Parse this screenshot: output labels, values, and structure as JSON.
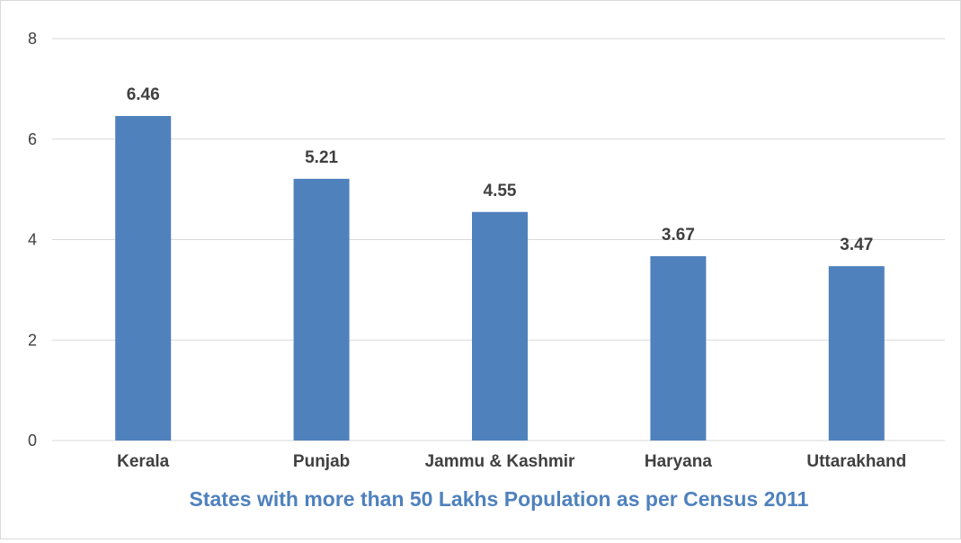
{
  "chart_data": {
    "type": "bar",
    "categories": [
      "Kerala",
      "Punjab",
      "Jammu & Kashmir",
      "Haryana",
      "Uttarakhand"
    ],
    "values": [
      6.46,
      5.21,
      4.55,
      3.67,
      3.47
    ],
    "data_labels": [
      "6.46",
      "5.21",
      "4.55",
      "3.67",
      "3.47"
    ],
    "title": "",
    "xlabel": "States with more than 50 Lakhs Population as per Census 2011",
    "ylabel": "",
    "ylim": [
      0,
      8
    ],
    "yticks": [
      0,
      2,
      4,
      6,
      8
    ],
    "grid": true,
    "legend": "none",
    "colors": {
      "bar": "#4f81bd",
      "xlabel": "#4f81bd",
      "grid": "#d9d9d9",
      "text": "#404040"
    }
  }
}
